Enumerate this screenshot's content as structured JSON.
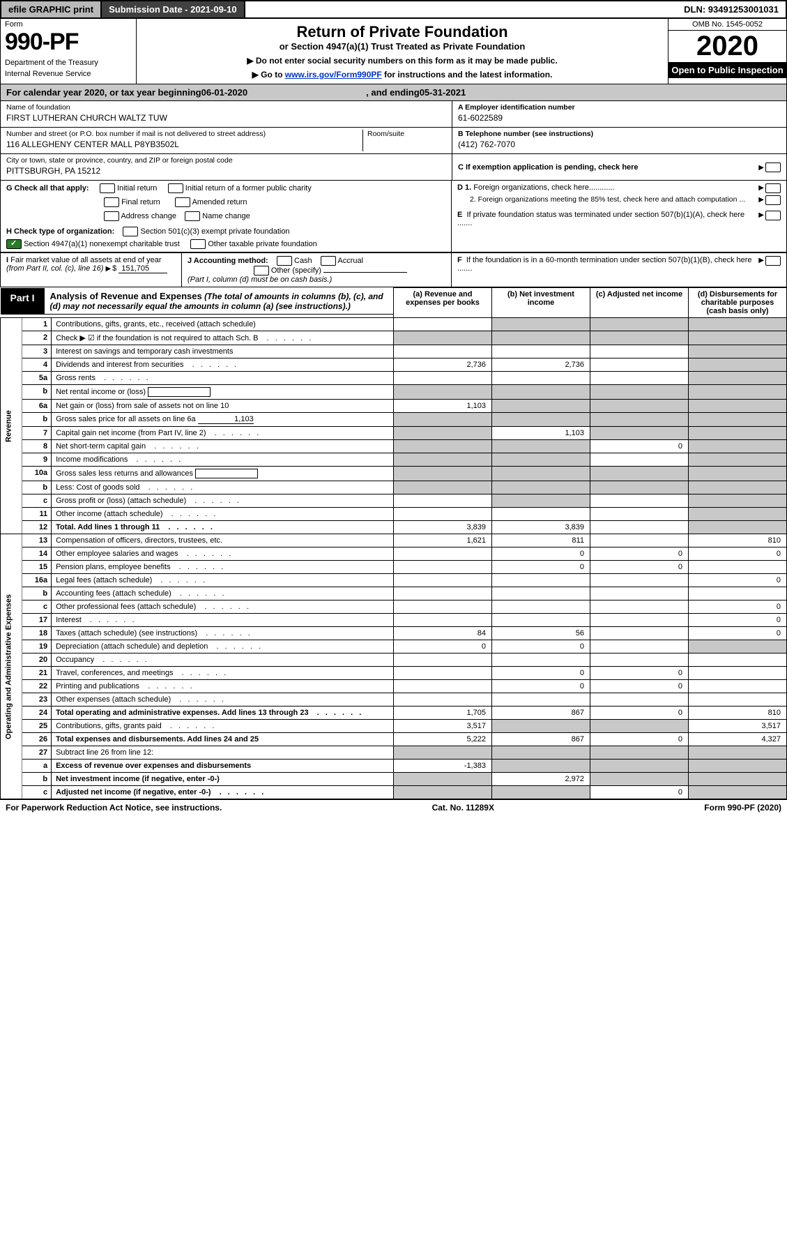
{
  "topbar": {
    "efile": "efile GRAPHIC print",
    "submission": "Submission Date - 2021-09-10",
    "dln": "DLN: 93491253001031"
  },
  "header": {
    "form_label": "Form",
    "form_number": "990-PF",
    "dept1": "Department of the Treasury",
    "dept2": "Internal Revenue Service",
    "title": "Return of Private Foundation",
    "subtitle": "or Section 4947(a)(1) Trust Treated as Private Foundation",
    "instr1": "▶ Do not enter social security numbers on this form as it may be made public.",
    "instr2_pre": "▶ Go to ",
    "instr2_link": "www.irs.gov/Form990PF",
    "instr2_post": " for instructions and the latest information.",
    "omb": "OMB No. 1545-0052",
    "year": "2020",
    "open": "Open to Public Inspection"
  },
  "cal_year": {
    "begin_label": "For calendar year 2020, or tax year beginning ",
    "begin": "06-01-2020",
    "end_label": ", and ending ",
    "end": "05-31-2021"
  },
  "entity": {
    "name_label": "Name of foundation",
    "name": "FIRST LUTHERAN CHURCH WALTZ TUW",
    "addr_label": "Number and street (or P.O. box number if mail is not delivered to street address)",
    "addr": "116 ALLEGHENY CENTER MALL P8YB3502L",
    "room_label": "Room/suite",
    "city_label": "City or town, state or province, country, and ZIP or foreign postal code",
    "city": "PITTSBURGH, PA  15212",
    "A_label": "A Employer identification number",
    "A_val": "61-6022589",
    "B_label": "B Telephone number (see instructions)",
    "B_val": "(412) 762-7070",
    "C_label": "C If exemption application is pending, check here",
    "D1": "D 1. Foreign organizations, check here............",
    "D2": "2. Foreign organizations meeting the 85% test, check here and attach computation ...",
    "E": "E  If private foundation status was terminated under section 507(b)(1)(A), check here .......",
    "F": "F  If the foundation is in a 60-month termination under section 507(b)(1)(B), check here .......",
    "G_label": "G Check all that apply:",
    "G_opts": [
      "Initial return",
      "Initial return of a former public charity",
      "Final return",
      "Amended return",
      "Address change",
      "Name change"
    ],
    "H_label": "H Check type of organization:",
    "H1": "Section 501(c)(3) exempt private foundation",
    "H2": "Section 4947(a)(1) nonexempt charitable trust",
    "H3": "Other taxable private foundation",
    "I_label": "I Fair market value of all assets at end of year (from Part II, col. (c), line 16)",
    "I_val": "151,705",
    "J_label": "J Accounting method:",
    "J_cash": "Cash",
    "J_accrual": "Accrual",
    "J_other": "Other (specify)",
    "J_note": "(Part I, column (d) must be on cash basis.)"
  },
  "part1": {
    "label": "Part I",
    "title": "Analysis of Revenue and Expenses",
    "note": "(The total of amounts in columns (b), (c), and (d) may not necessarily equal the amounts in column (a) (see instructions).)",
    "cols": {
      "a": "(a)  Revenue and expenses per books",
      "b": "(b)  Net investment income",
      "c": "(c)  Adjusted net income",
      "d": "(d)  Disbursements for charitable purposes (cash basis only)"
    }
  },
  "side_labels": {
    "revenue": "Revenue",
    "expenses": "Operating and Administrative Expenses"
  },
  "rows": [
    {
      "n": "1",
      "desc": "Contributions, gifts, grants, etc., received (attach schedule)",
      "a": "",
      "b": "g",
      "c": "g",
      "d": "g"
    },
    {
      "n": "2",
      "desc": "Check ▶ ☑ if the foundation is not required to attach Sch. B",
      "dots": true,
      "a": "g",
      "b": "g",
      "c": "g",
      "d": "g"
    },
    {
      "n": "3",
      "desc": "Interest on savings and temporary cash investments",
      "a": "",
      "b": "",
      "c": "",
      "d": "g"
    },
    {
      "n": "4",
      "desc": "Dividends and interest from securities",
      "dots": true,
      "a": "2,736",
      "b": "2,736",
      "c": "",
      "d": "g"
    },
    {
      "n": "5a",
      "desc": "Gross rents",
      "dots": true,
      "a": "",
      "b": "",
      "c": "",
      "d": "g"
    },
    {
      "n": "b",
      "desc": "Net rental income or (loss)",
      "box": true,
      "a": "g",
      "b": "g",
      "c": "g",
      "d": "g"
    },
    {
      "n": "6a",
      "desc": "Net gain or (loss) from sale of assets not on line 10",
      "a": "1,103",
      "b": "g",
      "c": "g",
      "d": "g"
    },
    {
      "n": "b",
      "desc": "Gross sales price for all assets on line 6a",
      "uval": "1,103",
      "a": "g",
      "b": "g",
      "c": "g",
      "d": "g"
    },
    {
      "n": "7",
      "desc": "Capital gain net income (from Part IV, line 2)",
      "dots": true,
      "a": "g",
      "b": "1,103",
      "c": "g",
      "d": "g"
    },
    {
      "n": "8",
      "desc": "Net short-term capital gain",
      "dots": true,
      "a": "g",
      "b": "g",
      "c": "0",
      "d": "g"
    },
    {
      "n": "9",
      "desc": "Income modifications",
      "dots": true,
      "a": "g",
      "b": "g",
      "c": "",
      "d": "g"
    },
    {
      "n": "10a",
      "desc": "Gross sales less returns and allowances",
      "box": true,
      "a": "g",
      "b": "g",
      "c": "g",
      "d": "g"
    },
    {
      "n": "b",
      "desc": "Less: Cost of goods sold",
      "dots": true,
      "box": true,
      "a": "g",
      "b": "g",
      "c": "g",
      "d": "g"
    },
    {
      "n": "c",
      "desc": "Gross profit or (loss) (attach schedule)",
      "dots": true,
      "a": "",
      "b": "g",
      "c": "",
      "d": "g"
    },
    {
      "n": "11",
      "desc": "Other income (attach schedule)",
      "dots": true,
      "a": "",
      "b": "",
      "c": "",
      "d": "g"
    },
    {
      "n": "12",
      "desc": "Total. Add lines 1 through 11",
      "dots": true,
      "bold": true,
      "a": "3,839",
      "b": "3,839",
      "c": "",
      "d": "g"
    },
    {
      "n": "13",
      "desc": "Compensation of officers, directors, trustees, etc.",
      "a": "1,621",
      "b": "811",
      "c": "",
      "d": "810"
    },
    {
      "n": "14",
      "desc": "Other employee salaries and wages",
      "dots": true,
      "a": "",
      "b": "0",
      "c": "0",
      "d": "0"
    },
    {
      "n": "15",
      "desc": "Pension plans, employee benefits",
      "dots": true,
      "a": "",
      "b": "0",
      "c": "0",
      "d": ""
    },
    {
      "n": "16a",
      "desc": "Legal fees (attach schedule)",
      "dots": true,
      "a": "",
      "b": "",
      "c": "",
      "d": "0"
    },
    {
      "n": "b",
      "desc": "Accounting fees (attach schedule)",
      "dots": true,
      "a": "",
      "b": "",
      "c": "",
      "d": ""
    },
    {
      "n": "c",
      "desc": "Other professional fees (attach schedule)",
      "dots": true,
      "a": "",
      "b": "",
      "c": "",
      "d": "0"
    },
    {
      "n": "17",
      "desc": "Interest",
      "dots": true,
      "a": "",
      "b": "",
      "c": "",
      "d": "0"
    },
    {
      "n": "18",
      "desc": "Taxes (attach schedule) (see instructions)",
      "dots": true,
      "a": "84",
      "b": "56",
      "c": "",
      "d": "0"
    },
    {
      "n": "19",
      "desc": "Depreciation (attach schedule) and depletion",
      "dots": true,
      "a": "0",
      "b": "0",
      "c": "",
      "d": "g"
    },
    {
      "n": "20",
      "desc": "Occupancy",
      "dots": true,
      "a": "",
      "b": "",
      "c": "",
      "d": ""
    },
    {
      "n": "21",
      "desc": "Travel, conferences, and meetings",
      "dots": true,
      "a": "",
      "b": "0",
      "c": "0",
      "d": ""
    },
    {
      "n": "22",
      "desc": "Printing and publications",
      "dots": true,
      "a": "",
      "b": "0",
      "c": "0",
      "d": ""
    },
    {
      "n": "23",
      "desc": "Other expenses (attach schedule)",
      "dots": true,
      "a": "",
      "b": "",
      "c": "",
      "d": ""
    },
    {
      "n": "24",
      "desc": "Total operating and administrative expenses. Add lines 13 through 23",
      "dots": true,
      "bold": true,
      "a": "1,705",
      "b": "867",
      "c": "0",
      "d": "810"
    },
    {
      "n": "25",
      "desc": "Contributions, gifts, grants paid",
      "dots": true,
      "a": "3,517",
      "b": "g",
      "c": "g",
      "d": "3,517"
    },
    {
      "n": "26",
      "desc": "Total expenses and disbursements. Add lines 24 and 25",
      "bold": true,
      "a": "5,222",
      "b": "867",
      "c": "0",
      "d": "4,327"
    },
    {
      "n": "27",
      "desc": "Subtract line 26 from line 12:",
      "a": "g",
      "b": "g",
      "c": "g",
      "d": "g"
    },
    {
      "n": "a",
      "desc": "Excess of revenue over expenses and disbursements",
      "bold": true,
      "a": "-1,383",
      "b": "g",
      "c": "g",
      "d": "g"
    },
    {
      "n": "b",
      "desc": "Net investment income (if negative, enter -0-)",
      "bold": true,
      "a": "g",
      "b": "2,972",
      "c": "g",
      "d": "g"
    },
    {
      "n": "c",
      "desc": "Adjusted net income (if negative, enter -0-)",
      "dots": true,
      "bold": true,
      "a": "g",
      "b": "g",
      "c": "0",
      "d": "g"
    }
  ],
  "footer": {
    "left": "For Paperwork Reduction Act Notice, see instructions.",
    "mid": "Cat. No. 11289X",
    "right": "Form 990-PF (2020)"
  },
  "colors": {
    "grey": "#c8c8c8",
    "darkgrey": "#404040",
    "lightgrey": "#b8b8b8"
  }
}
